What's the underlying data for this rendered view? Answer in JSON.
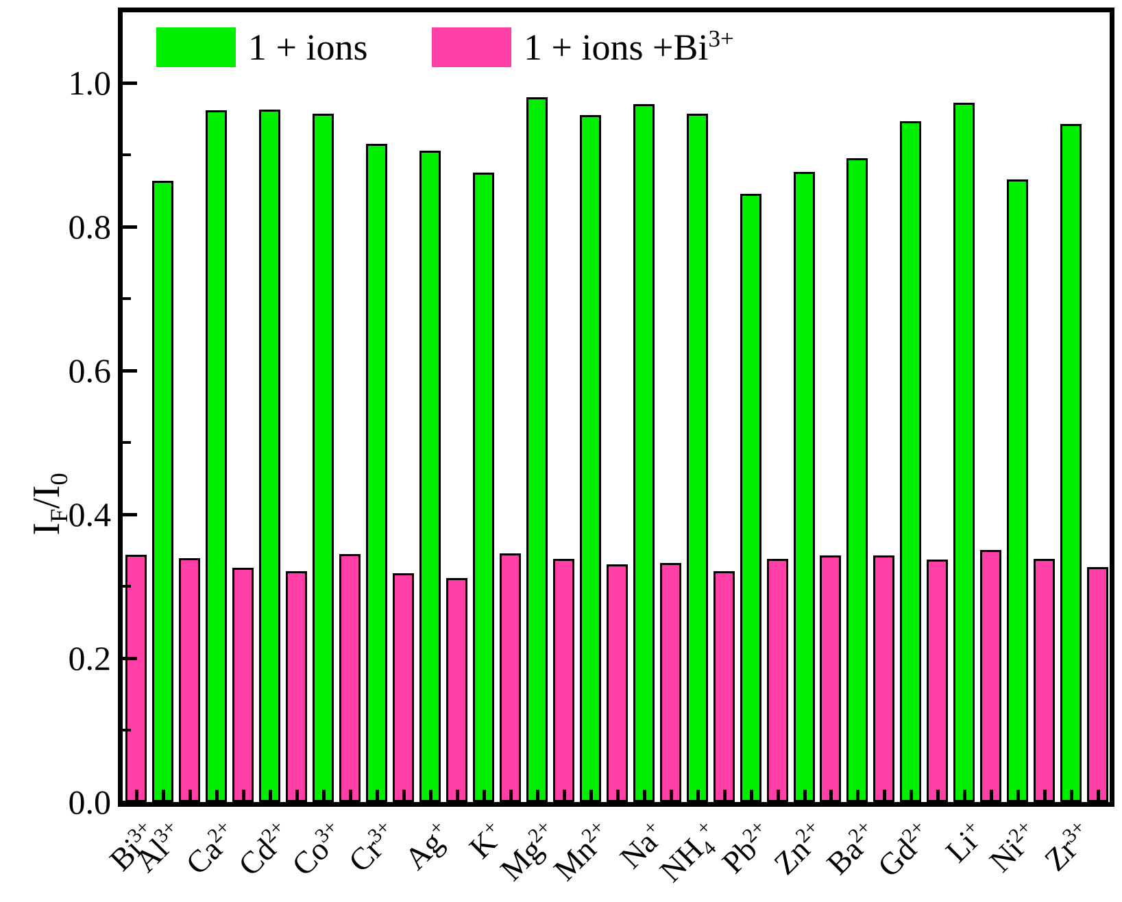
{
  "chart_data": {
    "type": "bar",
    "title": "",
    "xlabel": "",
    "ylabel": "I_F/I_0",
    "ylim": [
      0,
      1.1
    ],
    "grid": false,
    "legend_position": "top-inside",
    "ytick_major_values": [
      0.0,
      0.2,
      0.4,
      0.6,
      0.8,
      1.0
    ],
    "ytick_labels": [
      "0.0",
      "0.2",
      "0.4",
      "0.6",
      "0.8",
      "1.0"
    ],
    "ytick_minor_values": [
      0.1,
      0.3,
      0.5,
      0.7,
      0.9
    ],
    "categories": [
      "Bi^3+",
      "Al^3+",
      "Ca^2+",
      "Cd^2+",
      "Co^3+",
      "Cr^3+",
      "Ag^+",
      "K^+",
      "Mg^2+",
      "Mn^2+",
      "Na^+",
      "NH_4^+",
      "Pb^2+",
      "Zn^2+",
      "Ba^2+",
      "Gd^2+",
      "Li^+",
      "Ni^2+",
      "Zr^3+"
    ],
    "series": [
      {
        "name": "1 + ions",
        "name_markup": "1 + ions",
        "color": "#00ee00",
        "values": [
          null,
          0.864,
          0.962,
          0.963,
          0.957,
          0.915,
          0.906,
          0.875,
          0.98,
          0.955,
          0.97,
          0.957,
          0.846,
          0.876,
          0.895,
          0.947,
          0.972,
          0.866,
          0.943
        ]
      },
      {
        "name": "1 + ions +Bi3+",
        "name_markup": "1 + ions +Bi^3+",
        "color": "#ff3fa6",
        "values": [
          0.344,
          0.339,
          0.326,
          0.321,
          0.345,
          0.318,
          0.311,
          0.346,
          0.338,
          0.33,
          0.332,
          0.321,
          0.338,
          0.343,
          0.343,
          0.337,
          0.35,
          0.338,
          0.327
        ]
      }
    ],
    "bar_border_color": "#000000",
    "axis_color": "#000000",
    "background_color": "#ffffff"
  }
}
